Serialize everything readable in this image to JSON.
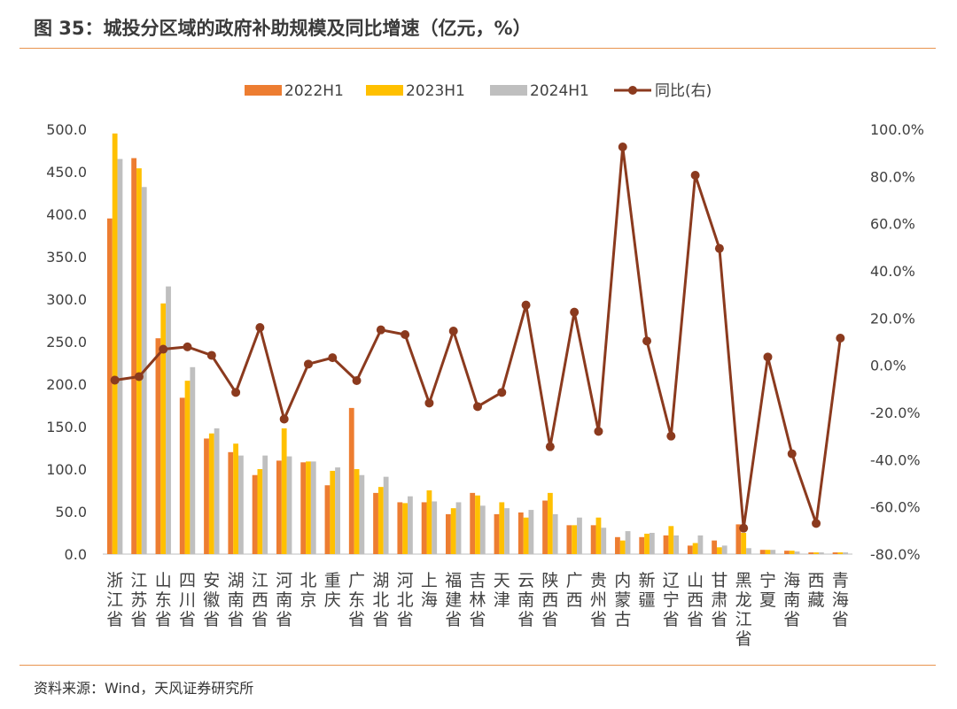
{
  "header": {
    "title": "图 35：城投分区域的政府补助规模及同比增速（亿元，%）"
  },
  "footer": {
    "source": "资料来源：Wind，天风证券研究所"
  },
  "colors": {
    "s2022": "#ED7D31",
    "s2023": "#FFC000",
    "s2024": "#BFBFBF",
    "yoy": "#8B3A1E",
    "accent_rule": "#E8944E"
  },
  "chart_data": {
    "type": "bar",
    "legend_position": "top",
    "grid": false,
    "categories": [
      "浙江省",
      "江苏省",
      "山东省",
      "四川省",
      "安徽省",
      "湖南省",
      "江西省",
      "河南省",
      "北京",
      "重庆",
      "广东省",
      "湖北省",
      "河北省",
      "上海",
      "福建省",
      "吉林省",
      "天津",
      "云南省",
      "陕西省",
      "广西",
      "贵州省",
      "内蒙古",
      "新疆",
      "辽宁省",
      "山西省",
      "甘肃省",
      "黑龙江省",
      "宁夏",
      "海南省",
      "西藏",
      "青海省"
    ],
    "y_left": {
      "range": [
        0,
        500
      ],
      "ticks": [
        "0.0",
        "50.0",
        "100.0",
        "150.0",
        "200.0",
        "250.0",
        "300.0",
        "350.0",
        "400.0",
        "450.0",
        "500.0"
      ]
    },
    "y_right": {
      "range": [
        -80,
        100
      ],
      "ticks": [
        "-80.0%",
        "-60.0%",
        "-40.0%",
        "-20.0%",
        "0.0%",
        "20.0%",
        "40.0%",
        "60.0%",
        "80.0%",
        "100.0%"
      ]
    },
    "series": [
      {
        "name": "2022H1",
        "type": "bar",
        "axis": "left",
        "values": [
          395,
          466,
          254,
          184,
          136,
          120,
          93,
          110,
          108,
          81,
          172,
          72,
          61,
          61,
          47,
          72,
          47,
          49,
          63,
          34,
          34,
          20,
          20,
          22,
          10,
          16,
          35,
          5,
          4,
          2,
          2
        ]
      },
      {
        "name": "2023H1",
        "type": "bar",
        "axis": "left",
        "values": [
          495,
          454,
          295,
          204,
          142,
          130,
          100,
          148,
          109,
          98,
          100,
          79,
          60,
          75,
          54,
          69,
          61,
          43,
          72,
          34,
          43,
          16,
          24,
          33,
          13,
          8,
          25,
          5,
          4,
          2,
          2
        ]
      },
      {
        "name": "2024H1",
        "type": "bar",
        "axis": "left",
        "values": [
          465,
          432,
          315,
          220,
          148,
          116,
          116,
          115,
          109,
          102,
          93,
          91,
          68,
          62,
          61,
          57,
          54,
          52,
          47,
          43,
          31,
          27,
          25,
          22,
          22,
          10,
          7,
          5,
          3,
          2,
          2
        ]
      },
      {
        "name": "同比(右)",
        "type": "line",
        "axis": "right",
        "values": [
          -6.3,
          -4.8,
          6.8,
          7.8,
          4.2,
          -11.5,
          16.0,
          -22.8,
          0.5,
          3.2,
          -6.5,
          15.0,
          13.0,
          -16.0,
          14.5,
          -17.5,
          -11.5,
          25.5,
          -34.5,
          22.5,
          -28.0,
          92.5,
          10.3,
          -30.0,
          80.5,
          49.5,
          -69.0,
          3.5,
          -37.5,
          -67.0,
          11.5
        ]
      }
    ]
  }
}
